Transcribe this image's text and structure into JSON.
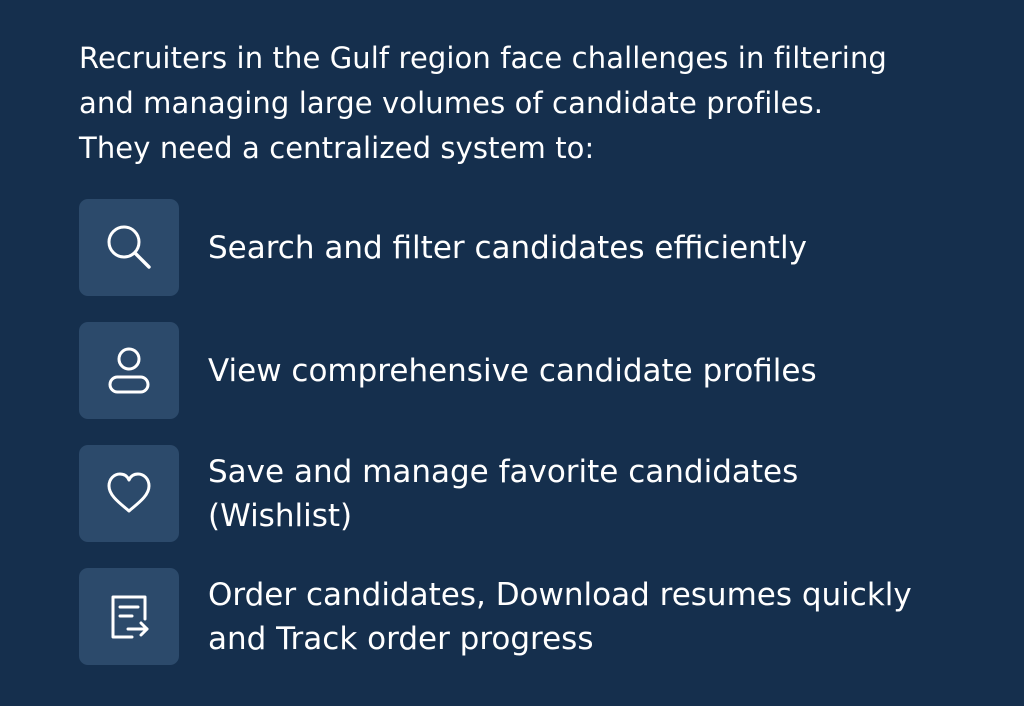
{
  "intro": {
    "lines": [
      "Recruiters in the Gulf region face challenges in filtering",
      "and managing large volumes of candidate profiles.",
      "They need a centralized system to:"
    ]
  },
  "features": [
    {
      "icon": "search-icon",
      "lines": [
        "Search and filter candidates efficiently"
      ]
    },
    {
      "icon": "user-icon",
      "lines": [
        "View comprehensive candidate profiles"
      ]
    },
    {
      "icon": "heart-icon",
      "lines": [
        "Save and manage favorite candidates",
        "(Wishlist)"
      ]
    },
    {
      "icon": "document-export-icon",
      "lines": [
        "Order candidates, Download resumes quickly",
        "and Track order progress"
      ]
    }
  ],
  "colors": {
    "background": "#152f4d",
    "icon_tile": "#2c4a6b",
    "text": "#ffffff"
  }
}
